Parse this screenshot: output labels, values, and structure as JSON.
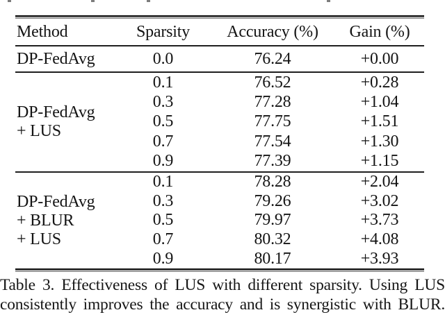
{
  "colors": {
    "background": "#ffffff",
    "text": "#141414",
    "rule": "#1e1e1e"
  },
  "table": {
    "columns": [
      "Method",
      "Sparsity",
      "Accuracy (%)",
      "Gain (%)"
    ],
    "sections": [
      {
        "method_lines": [
          "DP-FedAvg"
        ],
        "rows": [
          {
            "sparsity": "0.0",
            "accuracy": "76.24",
            "gain": "+0.00"
          }
        ]
      },
      {
        "method_lines": [
          "DP-FedAvg",
          "+ LUS"
        ],
        "rows": [
          {
            "sparsity": "0.1",
            "accuracy": "76.52",
            "gain": "+0.28"
          },
          {
            "sparsity": "0.3",
            "accuracy": "77.28",
            "gain": "+1.04"
          },
          {
            "sparsity": "0.5",
            "accuracy": "77.75",
            "gain": "+1.51"
          },
          {
            "sparsity": "0.7",
            "accuracy": "77.54",
            "gain": "+1.30"
          },
          {
            "sparsity": "0.9",
            "accuracy": "77.39",
            "gain": "+1.15"
          }
        ]
      },
      {
        "method_lines": [
          "DP-FedAvg",
          "+ BLUR",
          "+ LUS"
        ],
        "rows": [
          {
            "sparsity": "0.1",
            "accuracy": "78.28",
            "gain": "+2.04"
          },
          {
            "sparsity": "0.3",
            "accuracy": "79.26",
            "gain": "+3.02"
          },
          {
            "sparsity": "0.5",
            "accuracy": "79.97",
            "gain": "+3.73"
          },
          {
            "sparsity": "0.7",
            "accuracy": "80.32",
            "gain": "+4.08"
          },
          {
            "sparsity": "0.9",
            "accuracy": "80.17",
            "gain": "+3.93"
          }
        ]
      }
    ]
  },
  "caption": {
    "line1": "Table 3. Effectiveness of LUS with different sparsity. Using LUS",
    "line2": "consistently improves the accuracy and is synergistic with BLUR."
  }
}
